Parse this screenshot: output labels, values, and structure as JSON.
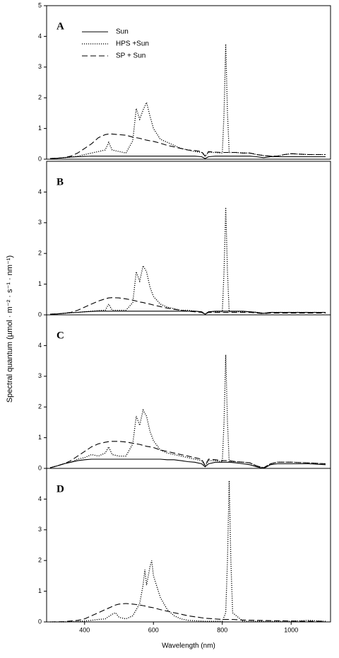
{
  "ylabel": "Spectral quantum (µmol · m⁻² · s⁻¹ · nm⁻¹)",
  "chart_data": [
    {
      "type": "line",
      "label": "A",
      "legend": "upper left",
      "x": [
        300,
        320,
        340,
        360,
        380,
        400,
        420,
        440,
        460,
        470,
        480,
        500,
        520,
        540,
        550,
        560,
        570,
        580,
        590,
        600,
        620,
        640,
        660,
        680,
        700,
        720,
        740,
        750,
        760,
        780,
        800,
        805,
        810,
        815,
        820,
        840,
        860,
        880,
        900,
        920,
        940,
        960,
        980,
        1000,
        1050,
        1100
      ],
      "series": [
        {
          "name": "Sun",
          "color": "#000000",
          "dash": "solid",
          "values": [
            0.02,
            0.03,
            0.05,
            0.07,
            0.08,
            0.09,
            0.1,
            0.1,
            0.1,
            0.1,
            0.1,
            0.1,
            0.1,
            0.1,
            0.1,
            0.1,
            0.1,
            0.1,
            0.1,
            0.1,
            0.1,
            0.1,
            0.1,
            0.1,
            0.1,
            0.1,
            0.08,
            0.02,
            0.08,
            0.1,
            0.1,
            0.1,
            0.1,
            0.1,
            0.1,
            0.1,
            0.1,
            0.1,
            0.08,
            0.05,
            0.08,
            0.08,
            0.08,
            0.08,
            0.08,
            0.08
          ]
        },
        {
          "name": "HPS +Sun",
          "color": "#000000",
          "dash": "dotted",
          "values": [
            0.02,
            0.03,
            0.05,
            0.07,
            0.1,
            0.15,
            0.2,
            0.25,
            0.3,
            0.55,
            0.3,
            0.25,
            0.2,
            0.6,
            1.65,
            1.3,
            1.6,
            1.85,
            1.4,
            1.0,
            0.65,
            0.55,
            0.45,
            0.35,
            0.3,
            0.25,
            0.22,
            0.1,
            0.22,
            0.22,
            0.2,
            1.5,
            3.75,
            1.5,
            0.22,
            0.22,
            0.2,
            0.2,
            0.15,
            0.12,
            0.1,
            0.1,
            0.15,
            0.18,
            0.15,
            0.15
          ]
        },
        {
          "name": "SP + Sun",
          "color": "#000000",
          "dash": "dashed",
          "values": [
            0.02,
            0.03,
            0.05,
            0.1,
            0.2,
            0.35,
            0.5,
            0.7,
            0.8,
            0.82,
            0.82,
            0.8,
            0.78,
            0.72,
            0.7,
            0.68,
            0.65,
            0.62,
            0.6,
            0.58,
            0.52,
            0.45,
            0.4,
            0.35,
            0.3,
            0.28,
            0.25,
            0.1,
            0.25,
            0.23,
            0.22,
            0.22,
            0.22,
            0.22,
            0.22,
            0.22,
            0.2,
            0.2,
            0.15,
            0.12,
            0.1,
            0.1,
            0.15,
            0.18,
            0.15,
            0.15
          ]
        }
      ],
      "xlim": [
        300,
        1100
      ],
      "ylim": [
        0,
        5
      ],
      "yticks": [
        0,
        1,
        2,
        3,
        4,
        5
      ]
    },
    {
      "type": "line",
      "label": "B",
      "x": [
        300,
        320,
        340,
        360,
        380,
        400,
        420,
        440,
        460,
        470,
        480,
        500,
        520,
        540,
        550,
        560,
        570,
        580,
        590,
        600,
        620,
        640,
        660,
        680,
        700,
        720,
        740,
        750,
        760,
        780,
        800,
        805,
        810,
        815,
        820,
        840,
        860,
        880,
        900,
        920,
        940,
        960,
        980,
        1000,
        1050,
        1100
      ],
      "series": [
        {
          "color": "#000000",
          "dash": "solid",
          "values": [
            0.02,
            0.03,
            0.05,
            0.07,
            0.08,
            0.1,
            0.11,
            0.12,
            0.12,
            0.12,
            0.12,
            0.12,
            0.12,
            0.12,
            0.12,
            0.12,
            0.12,
            0.12,
            0.12,
            0.12,
            0.12,
            0.12,
            0.12,
            0.12,
            0.12,
            0.12,
            0.1,
            0.02,
            0.1,
            0.12,
            0.12,
            0.12,
            0.12,
            0.12,
            0.12,
            0.12,
            0.12,
            0.1,
            0.08,
            0.05,
            0.08,
            0.08,
            0.08,
            0.08,
            0.08,
            0.08
          ]
        },
        {
          "color": "#000000",
          "dash": "dotted",
          "values": [
            0.02,
            0.03,
            0.05,
            0.07,
            0.08,
            0.1,
            0.12,
            0.14,
            0.15,
            0.35,
            0.15,
            0.15,
            0.15,
            0.4,
            1.4,
            1.1,
            1.6,
            1.4,
            0.9,
            0.6,
            0.35,
            0.25,
            0.2,
            0.15,
            0.15,
            0.12,
            0.1,
            0.02,
            0.1,
            0.1,
            0.1,
            1.4,
            3.5,
            1.4,
            0.1,
            0.1,
            0.1,
            0.1,
            0.08,
            0.05,
            0.08,
            0.08,
            0.08,
            0.08,
            0.08,
            0.08
          ]
        },
        {
          "color": "#000000",
          "dash": "dashed",
          "values": [
            0.02,
            0.03,
            0.05,
            0.08,
            0.15,
            0.25,
            0.35,
            0.45,
            0.52,
            0.55,
            0.56,
            0.55,
            0.52,
            0.48,
            0.45,
            0.42,
            0.4,
            0.37,
            0.35,
            0.32,
            0.27,
            0.22,
            0.18,
            0.15,
            0.12,
            0.1,
            0.08,
            0.02,
            0.08,
            0.08,
            0.08,
            0.08,
            0.08,
            0.08,
            0.08,
            0.08,
            0.08,
            0.08,
            0.06,
            0.04,
            0.06,
            0.06,
            0.06,
            0.06,
            0.06,
            0.06
          ]
        }
      ],
      "xlim": [
        300,
        1100
      ],
      "ylim": [
        0,
        5
      ],
      "yticks": [
        0,
        1,
        2,
        3,
        4
      ]
    },
    {
      "type": "line",
      "label": "C",
      "x": [
        300,
        320,
        340,
        360,
        380,
        400,
        420,
        440,
        460,
        470,
        480,
        500,
        520,
        540,
        550,
        560,
        570,
        580,
        590,
        600,
        620,
        640,
        660,
        680,
        700,
        720,
        740,
        750,
        760,
        780,
        800,
        805,
        810,
        815,
        820,
        840,
        860,
        880,
        900,
        920,
        940,
        960,
        980,
        1000,
        1050,
        1100
      ],
      "series": [
        {
          "color": "#000000",
          "dash": "solid",
          "values": [
            0.02,
            0.08,
            0.15,
            0.2,
            0.25,
            0.28,
            0.3,
            0.3,
            0.3,
            0.3,
            0.3,
            0.3,
            0.3,
            0.3,
            0.3,
            0.3,
            0.3,
            0.3,
            0.3,
            0.3,
            0.3,
            0.28,
            0.28,
            0.25,
            0.22,
            0.2,
            0.15,
            0.05,
            0.15,
            0.2,
            0.2,
            0.2,
            0.2,
            0.2,
            0.2,
            0.18,
            0.15,
            0.12,
            0.05,
            0.0,
            0.12,
            0.15,
            0.15,
            0.15,
            0.15,
            0.12
          ]
        },
        {
          "color": "#000000",
          "dash": "dotted",
          "values": [
            0.02,
            0.08,
            0.15,
            0.2,
            0.3,
            0.35,
            0.45,
            0.4,
            0.5,
            0.7,
            0.45,
            0.4,
            0.4,
            0.8,
            1.7,
            1.4,
            1.9,
            1.7,
            1.2,
            0.9,
            0.6,
            0.5,
            0.45,
            0.4,
            0.35,
            0.3,
            0.25,
            0.08,
            0.25,
            0.25,
            0.22,
            1.5,
            3.7,
            1.5,
            0.22,
            0.22,
            0.2,
            0.18,
            0.08,
            0.02,
            0.15,
            0.2,
            0.2,
            0.2,
            0.18,
            0.15
          ]
        },
        {
          "color": "#000000",
          "dash": "dashed",
          "values": [
            0.02,
            0.08,
            0.15,
            0.25,
            0.4,
            0.55,
            0.7,
            0.8,
            0.85,
            0.87,
            0.88,
            0.88,
            0.86,
            0.82,
            0.8,
            0.78,
            0.75,
            0.72,
            0.7,
            0.68,
            0.6,
            0.55,
            0.5,
            0.45,
            0.4,
            0.35,
            0.3,
            0.1,
            0.3,
            0.28,
            0.25,
            0.25,
            0.25,
            0.25,
            0.25,
            0.22,
            0.2,
            0.18,
            0.08,
            0.02,
            0.15,
            0.2,
            0.2,
            0.2,
            0.18,
            0.15
          ]
        }
      ],
      "xlim": [
        300,
        1100
      ],
      "ylim": [
        0,
        5
      ],
      "yticks": [
        0,
        1,
        2,
        3,
        4
      ]
    },
    {
      "type": "line",
      "label": "D",
      "xlabel": "Wavelength (nm)",
      "x": [
        300,
        340,
        380,
        400,
        420,
        440,
        460,
        480,
        490,
        500,
        520,
        540,
        560,
        570,
        575,
        580,
        590,
        595,
        600,
        620,
        640,
        660,
        680,
        700,
        750,
        800,
        810,
        815,
        820,
        825,
        830,
        860,
        900,
        1000,
        1050,
        1100
      ],
      "series": [
        {
          "color": "#000000",
          "dash": "dotted",
          "values": [
            0,
            0,
            0.02,
            0.03,
            0.05,
            0.08,
            0.1,
            0.25,
            0.3,
            0.15,
            0.1,
            0.2,
            0.6,
            1.2,
            1.7,
            1.2,
            1.8,
            2.0,
            1.5,
            0.8,
            0.4,
            0.2,
            0.1,
            0.05,
            0.02,
            0.02,
            0.3,
            2.0,
            4.6,
            2.0,
            0.3,
            0.02,
            0.02,
            0.02,
            0.05,
            0.02
          ]
        },
        {
          "color": "#000000",
          "dash": "dashed",
          "values": [
            0,
            0.01,
            0.05,
            0.1,
            0.2,
            0.3,
            0.4,
            0.5,
            0.55,
            0.58,
            0.6,
            0.58,
            0.55,
            0.53,
            0.52,
            0.5,
            0.48,
            0.47,
            0.46,
            0.4,
            0.35,
            0.3,
            0.25,
            0.2,
            0.12,
            0.08,
            0.08,
            0.08,
            0.08,
            0.08,
            0.08,
            0.06,
            0.05,
            0.03,
            0.02,
            0.02
          ]
        }
      ],
      "xlim": [
        300,
        1100
      ],
      "ylim": [
        0,
        5
      ],
      "yticks": [
        0,
        1,
        2,
        3,
        4
      ],
      "xticks": [
        400,
        600,
        800,
        1000
      ]
    }
  ]
}
